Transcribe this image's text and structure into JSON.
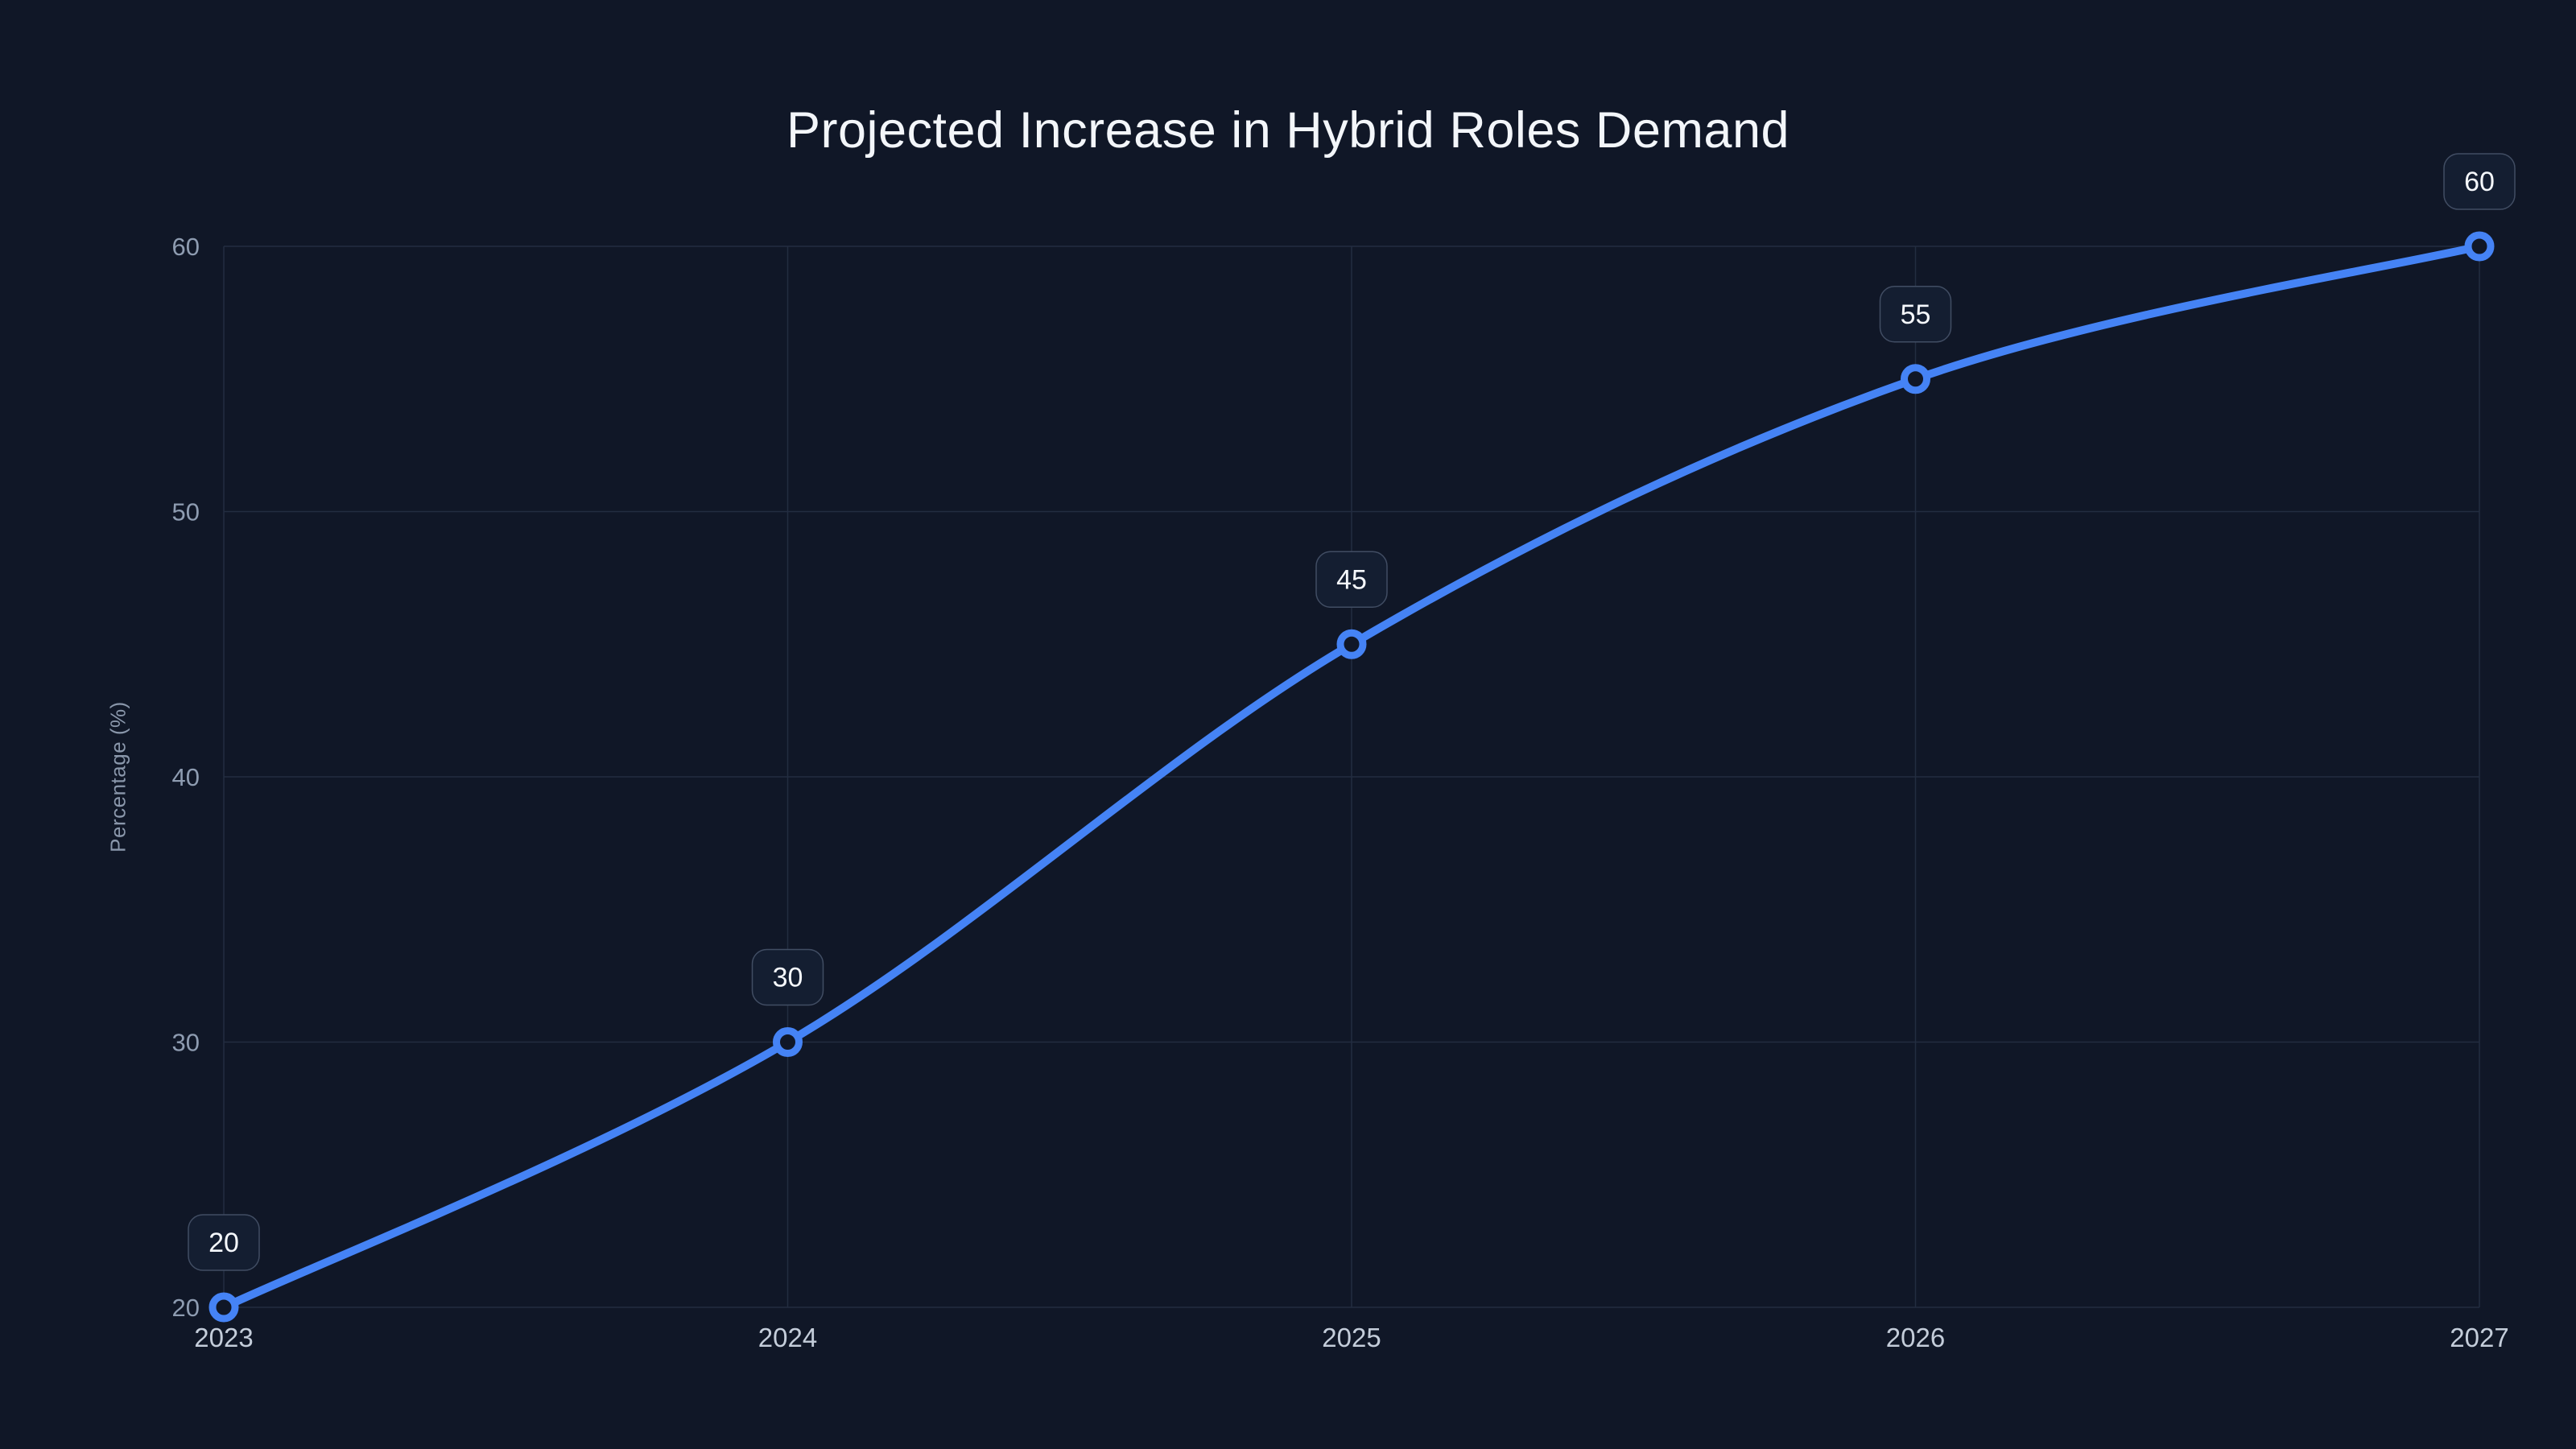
{
  "page": {
    "background_color": "#101727"
  },
  "chart_data": {
    "type": "line",
    "title": "Projected Increase in Hybrid Roles Demand",
    "xlabel": "",
    "ylabel": "Percentage (%)",
    "categories": [
      "2023",
      "2024",
      "2025",
      "2026",
      "2027"
    ],
    "values": [
      20,
      30,
      45,
      55,
      60
    ],
    "point_labels": [
      "20",
      "30",
      "45",
      "55",
      "60"
    ],
    "yticks": [
      20,
      30,
      40,
      50,
      60
    ],
    "ytick_labels": [
      "20",
      "30",
      "40",
      "50",
      "60"
    ],
    "ylim": [
      20,
      60
    ],
    "grid": true,
    "legend": "none",
    "smooth": true,
    "colors": {
      "line": "#4583f5",
      "marker_stroke": "#4583f5",
      "marker_fill": "#101727",
      "grid": "#232d40",
      "badge_fill": "#141e31",
      "badge_border": "#414d63",
      "badge_text": "#f5f8fc",
      "title_text": "#f3f6fa",
      "x_tick_text": "#c4cdda",
      "y_tick_text": "#8e9cb1",
      "axis_title_text": "#8a97ab"
    }
  }
}
